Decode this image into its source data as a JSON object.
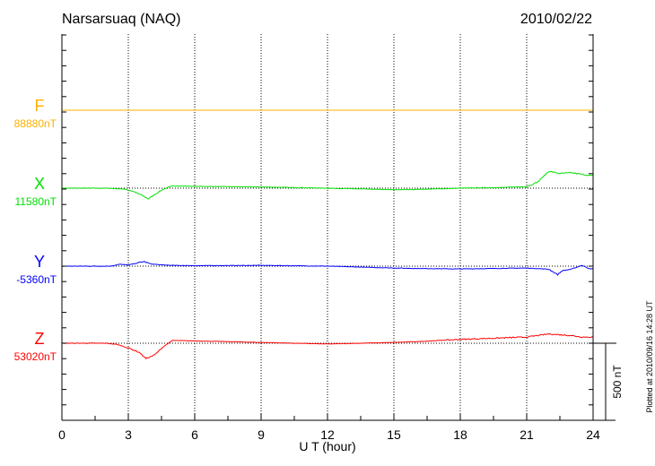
{
  "chart_data": {
    "type": "line",
    "title": "Narsarsuaq (NAQ)",
    "date": "2010/02/22",
    "xlabel": "U T (hour)",
    "xlim": [
      0,
      24
    ],
    "x_ticks": [
      "0",
      "3",
      "6",
      "9",
      "12",
      "15",
      "18",
      "21",
      "24"
    ],
    "scale_bar_label": "500 nT",
    "scale_bar_nT": 500,
    "footer": "Plotted at 2010/09/16 14:28 UT",
    "grid": true,
    "series": [
      {
        "name": "F",
        "baseline_label": "88880nT",
        "color": "#ffb000",
        "hours": [
          0,
          24
        ],
        "delta_nT": [
          0,
          0
        ]
      },
      {
        "name": "X",
        "baseline_label": "11580nT",
        "color": "#00e000",
        "hours": [
          0,
          2,
          2.8,
          3.2,
          3.6,
          3.9,
          4.2,
          4.6,
          5,
          6,
          9,
          12,
          15,
          16,
          18,
          20,
          21,
          21.5,
          22,
          22.5,
          23,
          23.5,
          24
        ],
        "delta_nT": [
          0,
          0,
          -5,
          -20,
          -45,
          -70,
          -40,
          -5,
          15,
          12,
          8,
          0,
          -10,
          -8,
          0,
          5,
          10,
          40,
          110,
          95,
          100,
          90,
          80
        ]
      },
      {
        "name": "Y",
        "baseline_label": "-5360nT",
        "color": "#0000ff",
        "hours": [
          0,
          2.2,
          2.6,
          3,
          3.4,
          3.7,
          4,
          4.5,
          5,
          6,
          9,
          12,
          15,
          16,
          18,
          21,
          22,
          22.4,
          22.6,
          23,
          23.5,
          23.8,
          24
        ],
        "delta_nT": [
          0,
          0,
          12,
          8,
          20,
          30,
          15,
          8,
          5,
          3,
          5,
          0,
          -12,
          -15,
          -18,
          -12,
          -20,
          -55,
          -30,
          -20,
          5,
          -15,
          -18
        ]
      },
      {
        "name": "Z",
        "baseline_label": "53020nT",
        "color": "#ff0000",
        "hours": [
          0,
          2,
          2.5,
          3,
          3.5,
          3.8,
          4.2,
          4.6,
          5,
          6,
          9,
          12,
          15,
          16,
          18,
          20,
          21,
          22,
          22.5,
          23,
          23.5,
          24
        ],
        "delta_nT": [
          0,
          0,
          -8,
          -30,
          -60,
          -100,
          -75,
          -20,
          18,
          15,
          5,
          -5,
          5,
          10,
          25,
          35,
          40,
          60,
          55,
          50,
          40,
          40
        ]
      }
    ]
  }
}
